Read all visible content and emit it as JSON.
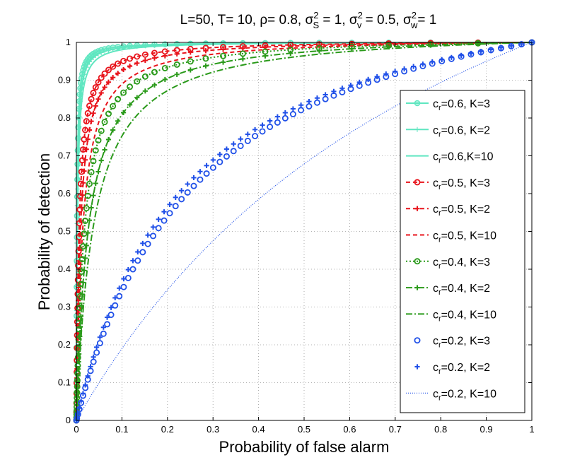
{
  "chart_data": {
    "type": "line",
    "title": "L=50, T= 10, ρ= 0.8, σS2 = 1, σv2 = 0.5, σw2= 1",
    "title_parts": {
      "prefix": "L=50, T= 10, ρ= 0.8, ",
      "sigma": "σ",
      "sup": "2",
      "sub_s": "S",
      "sub_v": "v",
      "sub_w": "w",
      "eq1": " = 1, ",
      "eq2": " = 0.5, ",
      "eq3": "= 1"
    },
    "xlabel": "Probability of false alarm",
    "ylabel": "Probability of detection",
    "xlim": [
      0,
      1
    ],
    "ylim": [
      0,
      1
    ],
    "grid": true,
    "legend_position": "right",
    "x_ticks": [
      "0",
      "0.1",
      "0.2",
      "0.3",
      "0.4",
      "0.5",
      "0.6",
      "0.7",
      "0.8",
      "0.9",
      "1"
    ],
    "y_ticks": [
      "0",
      "0.1",
      "0.2",
      "0.3",
      "0.4",
      "0.5",
      "0.6",
      "0.7",
      "0.8",
      "0.9",
      "1"
    ],
    "series": [
      {
        "name": "cr=0.6, K=3",
        "label_c": "c",
        "label_sub": "r",
        "label_rest": "=0.6, K=3",
        "color": "#5fe6c0",
        "dash": "",
        "marker": "filled-circle",
        "k": 0.0012
      },
      {
        "name": "cr=0.6, K=2",
        "label_c": "c",
        "label_sub": "r",
        "label_rest": "=0.6, K=2",
        "color": "#5fe6c0",
        "dash": "",
        "marker": "thin-plus",
        "k": 0.0016
      },
      {
        "name": "cr=0.6,K=10",
        "label_c": "c",
        "label_sub": "r",
        "label_rest": "=0.6,K=10",
        "color": "#5fe6c0",
        "dash": "",
        "marker": "none",
        "k": 0.0022
      },
      {
        "name": "cr=0.5, K=3",
        "label_c": "c",
        "label_sub": "r",
        "label_rest": "=0.5, K=3",
        "color": "#e8141c",
        "dash": "6,4",
        "marker": "circle",
        "k": 0.006
      },
      {
        "name": "cr=0.5, K=2",
        "label_c": "c",
        "label_sub": "r",
        "label_rest": "=0.5, K=2",
        "color": "#e8141c",
        "dash": "6,4",
        "marker": "plus",
        "k": 0.009
      },
      {
        "name": "cr=0.5, K=10",
        "label_c": "c",
        "label_sub": "r",
        "label_rest": "=0.5, K=10",
        "color": "#e8141c",
        "dash": "6,4",
        "marker": "none",
        "k": 0.014
      },
      {
        "name": "cr=0.4, K=3",
        "label_c": "c",
        "label_sub": "r",
        "label_rest": "=0.4, K=3",
        "color": "#2a9a1a",
        "dash": "2,3",
        "marker": "circle",
        "k": 0.018
      },
      {
        "name": "cr=0.4, K=2",
        "label_c": "c",
        "label_sub": "r",
        "label_rest": "=0.4, K=2",
        "color": "#2a9a1a",
        "dash": "9,3,2,3",
        "marker": "plus",
        "k": 0.027
      },
      {
        "name": "cr=0.4, K=10",
        "label_c": "c",
        "label_sub": "r",
        "label_rest": "=0.4, K=10",
        "color": "#2a9a1a",
        "dash": "9,3,2,3",
        "marker": "none",
        "k": 0.038
      },
      {
        "name": "cr=0.2, K=3",
        "label_c": "c",
        "label_sub": "r",
        "label_rest": "=0.2, K=3",
        "color": "#2050e8",
        "dash": "none",
        "marker": "circle",
        "k": 0.27
      },
      {
        "name": "cr=0.2, K=2",
        "label_c": "c",
        "label_sub": "r",
        "label_rest": "=0.2, K=2",
        "color": "#2050e8",
        "dash": "none",
        "marker": "plus",
        "k": 0.24
      },
      {
        "name": "cr=0.2, K=10",
        "label_c": "c",
        "label_sub": "r",
        "label_rest": "=0.2, K=10",
        "color": "#2050e8",
        "dash": "1,2",
        "marker": "none",
        "k": 0.9
      }
    ]
  }
}
